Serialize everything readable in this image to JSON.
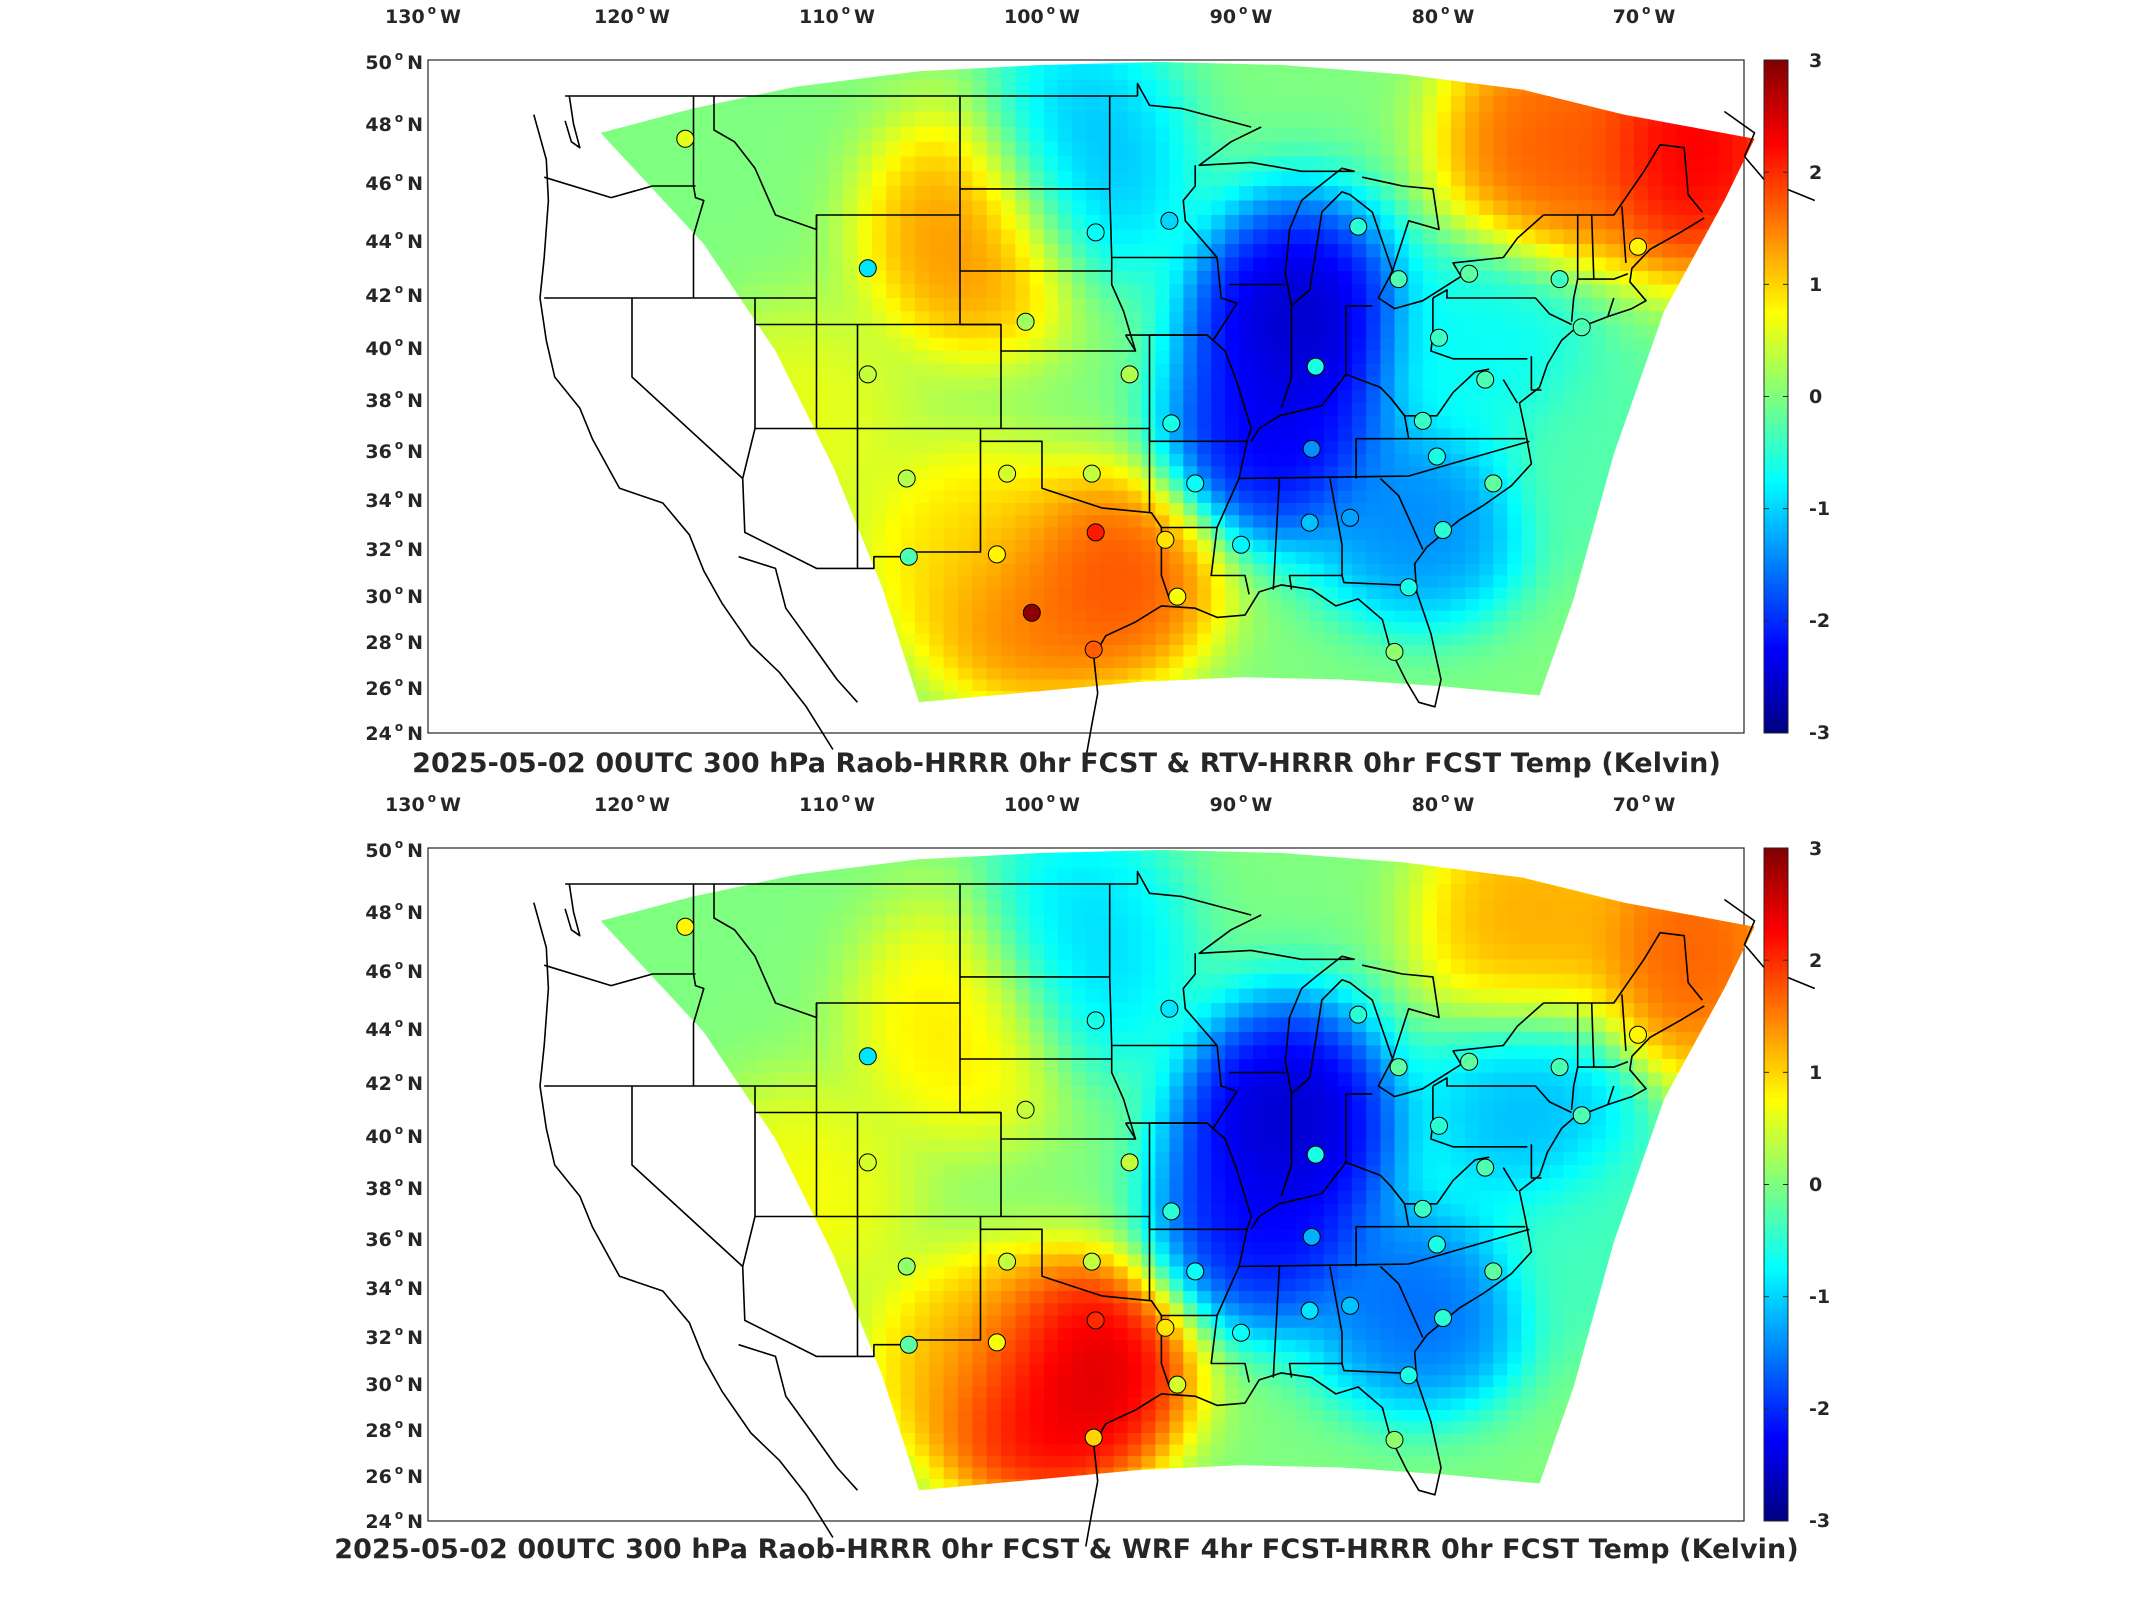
{
  "colors": {
    "colormap": "jet",
    "jet_stops": [
      "#00007f",
      "#0000ff",
      "#007fff",
      "#00ffff",
      "#7fff7f",
      "#ffff00",
      "#ff7f00",
      "#ff0000",
      "#7f0000"
    ],
    "coastline": "#000000",
    "background": "#ffffff"
  },
  "panels": [
    {
      "title": "2025-05-02 00UTC 300 hPa Raob-HRRR 0hr FCST & RTV-HRRR 0hr FCST Temp (Kelvin)",
      "lon_ticks": [
        {
          "value": "130",
          "hemi": "W"
        },
        {
          "value": "120",
          "hemi": "W"
        },
        {
          "value": "110",
          "hemi": "W"
        },
        {
          "value": "100",
          "hemi": "W"
        },
        {
          "value": "90",
          "hemi": "W"
        },
        {
          "value": "80",
          "hemi": "W"
        },
        {
          "value": "70",
          "hemi": "W"
        }
      ],
      "lat_ticks": [
        {
          "value": "50",
          "hemi": "N"
        },
        {
          "value": "48",
          "hemi": "N"
        },
        {
          "value": "46",
          "hemi": "N"
        },
        {
          "value": "44",
          "hemi": "N"
        },
        {
          "value": "42",
          "hemi": "N"
        },
        {
          "value": "40",
          "hemi": "N"
        },
        {
          "value": "38",
          "hemi": "N"
        },
        {
          "value": "36",
          "hemi": "N"
        },
        {
          "value": "34",
          "hemi": "N"
        },
        {
          "value": "32",
          "hemi": "N"
        },
        {
          "value": "30",
          "hemi": "N"
        },
        {
          "value": "28",
          "hemi": "N"
        },
        {
          "value": "26",
          "hemi": "N"
        },
        {
          "value": "24",
          "hemi": "N"
        }
      ],
      "colorbar": {
        "ticks": [
          "3",
          "2",
          "1",
          "0",
          "-1",
          "-2",
          "-3"
        ],
        "range": [
          -3,
          3
        ]
      },
      "field_anomalies": [
        {
          "lon": -87.5,
          "lat": 41.5,
          "value": -2.9
        },
        {
          "lon": -88.5,
          "lat": 37.0,
          "value": -2.6
        },
        {
          "lon": -81.5,
          "lat": 33.5,
          "value": -1.6
        },
        {
          "lon": -103.5,
          "lat": 44.5,
          "value": 1.6
        },
        {
          "lon": -97.0,
          "lat": 31.0,
          "value": 2.0
        },
        {
          "lon": -101.0,
          "lat": 30.0,
          "value": 1.7
        },
        {
          "lon": -104.0,
          "lat": 32.5,
          "value": 1.0
        },
        {
          "lon": -75.0,
          "lat": 47.5,
          "value": 1.9
        },
        {
          "lon": -68.0,
          "lat": 47.5,
          "value": 2.6
        },
        {
          "lon": -98.5,
          "lat": 47.0,
          "value": -1.3
        },
        {
          "lon": -78.0,
          "lat": 40.5,
          "value": -0.8
        },
        {
          "lon": -112.0,
          "lat": 37.5,
          "value": 0.7
        },
        {
          "lon": -72.0,
          "lat": 36.0,
          "value": -0.3
        }
      ],
      "stations": [
        {
          "lon": -117.4,
          "lat": 47.6,
          "value": 0.6
        },
        {
          "lon": -108.5,
          "lat": 43.1,
          "value": -0.9
        },
        {
          "lon": -108.5,
          "lat": 39.1,
          "value": 0.4
        },
        {
          "lon": -106.6,
          "lat": 35.0,
          "value": 0.3
        },
        {
          "lon": -106.5,
          "lat": 31.8,
          "value": -0.3
        },
        {
          "lon": -101.7,
          "lat": 35.2,
          "value": 0.5
        },
        {
          "lon": -102.2,
          "lat": 31.9,
          "value": 0.8
        },
        {
          "lon": -100.5,
          "lat": 29.4,
          "value": 2.9
        },
        {
          "lon": -97.4,
          "lat": 27.8,
          "value": 1.7
        },
        {
          "lon": -97.5,
          "lat": 35.2,
          "value": 0.4
        },
        {
          "lon": -97.3,
          "lat": 32.8,
          "value": 2.1
        },
        {
          "lon": -93.8,
          "lat": 32.5,
          "value": 0.9
        },
        {
          "lon": -93.2,
          "lat": 30.1,
          "value": 0.7
        },
        {
          "lon": -100.8,
          "lat": 41.1,
          "value": 0.2
        },
        {
          "lon": -97.3,
          "lat": 44.4,
          "value": -0.7
        },
        {
          "lon": -95.6,
          "lat": 39.1,
          "value": 0.3
        },
        {
          "lon": -93.6,
          "lat": 44.8,
          "value": -1.0
        },
        {
          "lon": -93.5,
          "lat": 37.2,
          "value": -0.6
        },
        {
          "lon": -92.3,
          "lat": 34.8,
          "value": -0.7
        },
        {
          "lon": -90.0,
          "lat": 32.3,
          "value": -0.8
        },
        {
          "lon": -86.6,
          "lat": 33.2,
          "value": -1.1
        },
        {
          "lon": -84.6,
          "lat": 33.4,
          "value": -1.3
        },
        {
          "lon": -86.5,
          "lat": 36.2,
          "value": -1.4
        },
        {
          "lon": -86.3,
          "lat": 39.4,
          "value": -0.6
        },
        {
          "lon": -84.2,
          "lat": 44.6,
          "value": -0.5
        },
        {
          "lon": -82.2,
          "lat": 42.7,
          "value": -0.3
        },
        {
          "lon": -80.2,
          "lat": 40.5,
          "value": -0.4
        },
        {
          "lon": -81.0,
          "lat": 37.3,
          "value": -0.4
        },
        {
          "lon": -80.3,
          "lat": 35.9,
          "value": -0.6
        },
        {
          "lon": -80.0,
          "lat": 32.9,
          "value": -0.5
        },
        {
          "lon": -81.7,
          "lat": 30.5,
          "value": -0.6
        },
        {
          "lon": -82.4,
          "lat": 27.7,
          "value": 0.1
        },
        {
          "lon": -77.9,
          "lat": 38.9,
          "value": -0.3
        },
        {
          "lon": -77.5,
          "lat": 34.8,
          "value": -0.2
        },
        {
          "lon": -78.7,
          "lat": 42.9,
          "value": -0.2
        },
        {
          "lon": -74.2,
          "lat": 42.7,
          "value": -0.4
        },
        {
          "lon": -73.1,
          "lat": 40.9,
          "value": -0.3
        },
        {
          "lon": -70.3,
          "lat": 43.9,
          "value": 0.8
        }
      ]
    },
    {
      "title": "2025-05-02 00UTC 300 hPa Raob-HRRR 0hr FCST & WRF 4hr FCST-HRRR 0hr FCST Temp (Kelvin)",
      "lon_ticks": [
        {
          "value": "130",
          "hemi": "W"
        },
        {
          "value": "120",
          "hemi": "W"
        },
        {
          "value": "110",
          "hemi": "W"
        },
        {
          "value": "100",
          "hemi": "W"
        },
        {
          "value": "90",
          "hemi": "W"
        },
        {
          "value": "80",
          "hemi": "W"
        },
        {
          "value": "70",
          "hemi": "W"
        }
      ],
      "lat_ticks": [
        {
          "value": "50",
          "hemi": "N"
        },
        {
          "value": "48",
          "hemi": "N"
        },
        {
          "value": "46",
          "hemi": "N"
        },
        {
          "value": "44",
          "hemi": "N"
        },
        {
          "value": "42",
          "hemi": "N"
        },
        {
          "value": "40",
          "hemi": "N"
        },
        {
          "value": "38",
          "hemi": "N"
        },
        {
          "value": "36",
          "hemi": "N"
        },
        {
          "value": "34",
          "hemi": "N"
        },
        {
          "value": "32",
          "hemi": "N"
        },
        {
          "value": "30",
          "hemi": "N"
        },
        {
          "value": "28",
          "hemi": "N"
        },
        {
          "value": "26",
          "hemi": "N"
        },
        {
          "value": "24",
          "hemi": "N"
        }
      ],
      "colorbar": {
        "ticks": [
          "3",
          "2",
          "1",
          "0",
          "-1",
          "-2",
          "-3"
        ],
        "range": [
          -3,
          3
        ]
      },
      "field_anomalies": [
        {
          "lon": -88.0,
          "lat": 41.0,
          "value": -2.9
        },
        {
          "lon": -89.0,
          "lat": 37.0,
          "value": -2.5
        },
        {
          "lon": -81.5,
          "lat": 33.5,
          "value": -1.8
        },
        {
          "lon": -98.5,
          "lat": 31.0,
          "value": 2.8
        },
        {
          "lon": -100.5,
          "lat": 29.5,
          "value": 2.6
        },
        {
          "lon": -103.5,
          "lat": 31.5,
          "value": 1.2
        },
        {
          "lon": -104.0,
          "lat": 44.5,
          "value": 1.0
        },
        {
          "lon": -76.0,
          "lat": 47.8,
          "value": 1.4
        },
        {
          "lon": -68.0,
          "lat": 47.0,
          "value": 1.9
        },
        {
          "lon": -98.5,
          "lat": 47.0,
          "value": -1.1
        },
        {
          "lon": -76.0,
          "lat": 41.5,
          "value": -1.3
        },
        {
          "lon": -112.0,
          "lat": 38.0,
          "value": 0.8
        },
        {
          "lon": -72.0,
          "lat": 36.0,
          "value": -0.4
        }
      ],
      "stations": [
        {
          "lon": -117.4,
          "lat": 47.6,
          "value": 0.8
        },
        {
          "lon": -108.5,
          "lat": 43.1,
          "value": -0.9
        },
        {
          "lon": -108.5,
          "lat": 39.1,
          "value": 0.5
        },
        {
          "lon": -106.6,
          "lat": 35.0,
          "value": 0.1
        },
        {
          "lon": -106.5,
          "lat": 31.8,
          "value": -0.2
        },
        {
          "lon": -101.7,
          "lat": 35.2,
          "value": 0.4
        },
        {
          "lon": -102.2,
          "lat": 31.9,
          "value": 0.7
        },
        {
          "lon": -97.4,
          "lat": 27.8,
          "value": 1.0
        },
        {
          "lon": -97.5,
          "lat": 35.2,
          "value": 0.4
        },
        {
          "lon": -97.3,
          "lat": 32.8,
          "value": 2.0
        },
        {
          "lon": -93.8,
          "lat": 32.5,
          "value": 0.9
        },
        {
          "lon": -93.2,
          "lat": 30.1,
          "value": 0.5
        },
        {
          "lon": -100.8,
          "lat": 41.1,
          "value": 0.4
        },
        {
          "lon": -97.3,
          "lat": 44.4,
          "value": -0.6
        },
        {
          "lon": -95.6,
          "lat": 39.1,
          "value": 0.4
        },
        {
          "lon": -93.6,
          "lat": 44.8,
          "value": -0.9
        },
        {
          "lon": -93.5,
          "lat": 37.2,
          "value": -0.5
        },
        {
          "lon": -92.3,
          "lat": 34.8,
          "value": -0.7
        },
        {
          "lon": -90.0,
          "lat": 32.3,
          "value": -0.7
        },
        {
          "lon": -86.6,
          "lat": 33.2,
          "value": -0.9
        },
        {
          "lon": -84.6,
          "lat": 33.4,
          "value": -1.1
        },
        {
          "lon": -86.5,
          "lat": 36.2,
          "value": -1.2
        },
        {
          "lon": -86.3,
          "lat": 39.4,
          "value": -0.6
        },
        {
          "lon": -84.2,
          "lat": 44.6,
          "value": -0.5
        },
        {
          "lon": -82.2,
          "lat": 42.7,
          "value": -0.2
        },
        {
          "lon": -80.2,
          "lat": 40.5,
          "value": -0.5
        },
        {
          "lon": -81.0,
          "lat": 37.3,
          "value": -0.4
        },
        {
          "lon": -80.3,
          "lat": 35.9,
          "value": -0.6
        },
        {
          "lon": -80.0,
          "lat": 32.9,
          "value": -0.5
        },
        {
          "lon": -81.7,
          "lat": 30.5,
          "value": -0.6
        },
        {
          "lon": -82.4,
          "lat": 27.7,
          "value": 0.1
        },
        {
          "lon": -77.9,
          "lat": 38.9,
          "value": -0.3
        },
        {
          "lon": -77.5,
          "lat": 34.8,
          "value": -0.2
        },
        {
          "lon": -78.7,
          "lat": 42.9,
          "value": -0.2
        },
        {
          "lon": -74.2,
          "lat": 42.7,
          "value": -0.3
        },
        {
          "lon": -73.1,
          "lat": 40.9,
          "value": -0.3
        },
        {
          "lon": -70.3,
          "lat": 43.9,
          "value": 0.8
        }
      ]
    }
  ]
}
